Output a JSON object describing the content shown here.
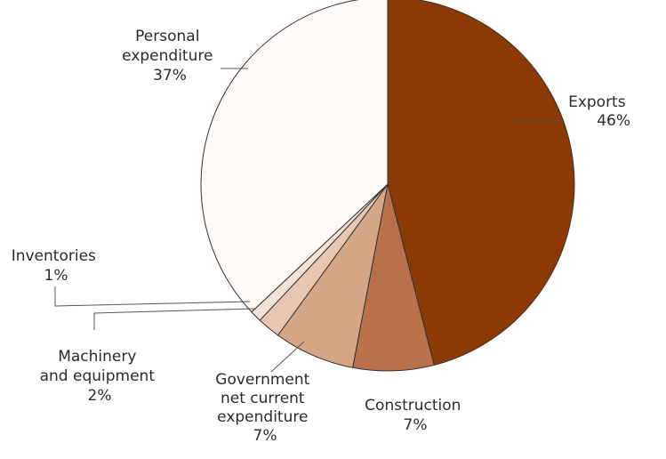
{
  "chart_data": {
    "type": "pie",
    "title": "",
    "slices": [
      {
        "name": "Exports",
        "value_label": "46%",
        "value": 46,
        "color": "#8b3a04"
      },
      {
        "name": "Construction",
        "value_label": "7%",
        "value": 7,
        "color": "#b8714a"
      },
      {
        "name": "Government net current expenditure",
        "value_label": "7%",
        "value": 7,
        "color": "#d4a685"
      },
      {
        "name": "Machinery and equipment",
        "value_label": "2%",
        "value": 2,
        "color": "#e8c6b0"
      },
      {
        "name": "Inventories",
        "value_label": "1%",
        "value": 1,
        "color": "#f3e2d8"
      },
      {
        "name": "Personal expenditure",
        "value_label": "37%",
        "value": 37,
        "color": "#fffaf6"
      }
    ],
    "labels": {
      "exports": {
        "line1": "Exports",
        "line2": "46%"
      },
      "construction": {
        "line1": "Construction",
        "line2": "7%"
      },
      "government": {
        "line1": "Government",
        "line2": "net current",
        "line3": "expenditure",
        "line4": "7%"
      },
      "machinery": {
        "line1": "Machinery",
        "line2": "and equipment",
        "line3": "2%"
      },
      "inventories": {
        "line1": "Inventories",
        "line2": "1%"
      },
      "personal": {
        "line1": "Personal",
        "line2": "expenditure",
        "line3": "37%"
      }
    }
  }
}
